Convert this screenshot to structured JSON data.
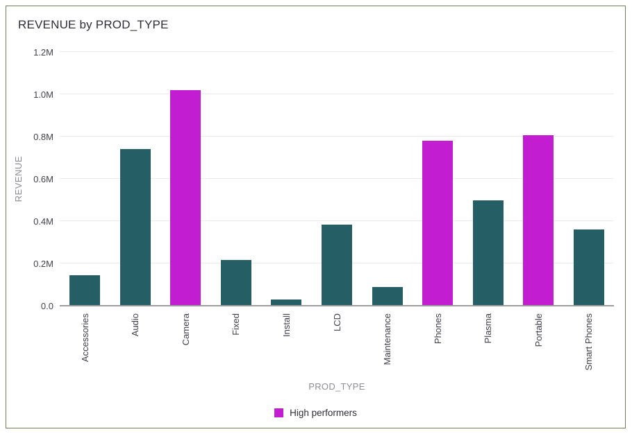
{
  "title": "REVENUE by PROD_TYPE",
  "colors": {
    "bar_default": "#265e66",
    "bar_highlight": "#c31dd2",
    "card_border": "#6e7f56",
    "gridline": "#e9eaee",
    "axis_line": "#9c9c9c",
    "tick_text": "#41414b",
    "axis_title_text": "#8c8c93",
    "title_text": "#2d2d37"
  },
  "legend": {
    "items": [
      {
        "label": "High performers",
        "color": "#c31dd2"
      }
    ]
  },
  "chart_data": {
    "type": "bar",
    "title": "REVENUE by PROD_TYPE",
    "xlabel": "PROD_TYPE",
    "ylabel": "REVENUE",
    "ylim": [
      0,
      1200000
    ],
    "grid": true,
    "legend_position": "bottom",
    "yticks": [
      {
        "value": 0,
        "label": "0.0"
      },
      {
        "value": 200000,
        "label": "0.2M"
      },
      {
        "value": 400000,
        "label": "0.4M"
      },
      {
        "value": 600000,
        "label": "0.6M"
      },
      {
        "value": 800000,
        "label": "0.8M"
      },
      {
        "value": 1000000,
        "label": "1.0M"
      },
      {
        "value": 1200000,
        "label": "1.2M"
      }
    ],
    "categories": [
      "Accessories",
      "Audio",
      "Camera",
      "Fixed",
      "Install",
      "LCD",
      "Maintenance",
      "Phones",
      "Plasma",
      "Portable",
      "Smart Phones"
    ],
    "values": [
      145000,
      740000,
      1020000,
      215000,
      30000,
      385000,
      90000,
      780000,
      500000,
      805000,
      360000
    ],
    "highlighted_categories": [
      "Camera",
      "Phones",
      "Portable"
    ],
    "highlight_legend_label": "High performers"
  }
}
